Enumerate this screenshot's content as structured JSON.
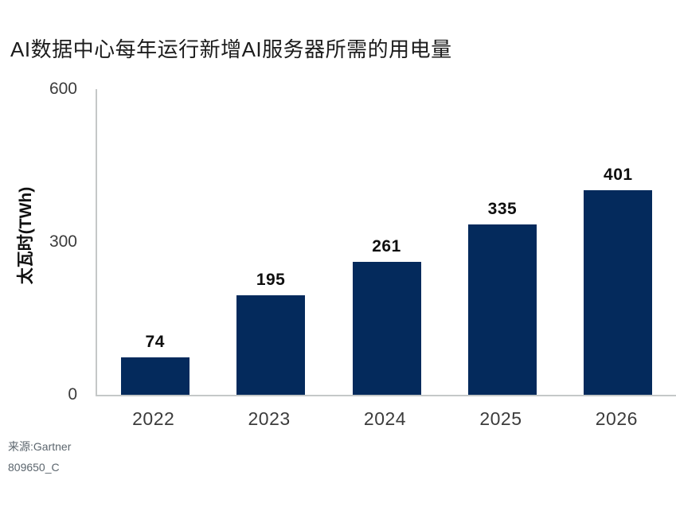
{
  "chart_data": {
    "type": "bar",
    "title": "AI数据中心每年运行新增AI服务器所需的用电量",
    "categories": [
      "2022",
      "2023",
      "2024",
      "2025",
      "2026"
    ],
    "values": [
      74,
      195,
      261,
      335,
      401
    ],
    "xlabel": "",
    "ylabel": "太瓦时(TWh)",
    "yticks": [
      0,
      300,
      600
    ],
    "ylim": [
      0,
      600
    ],
    "grid": false,
    "legend": false,
    "value_labels_shown": true,
    "bar_color": "#042a5c",
    "axis_color": "#c5c8c8",
    "title_color": "#1c1c1c",
    "tick_color": "#3c3c3c"
  },
  "source": {
    "line1": "来源:Gartner",
    "line2": "809650_C"
  }
}
